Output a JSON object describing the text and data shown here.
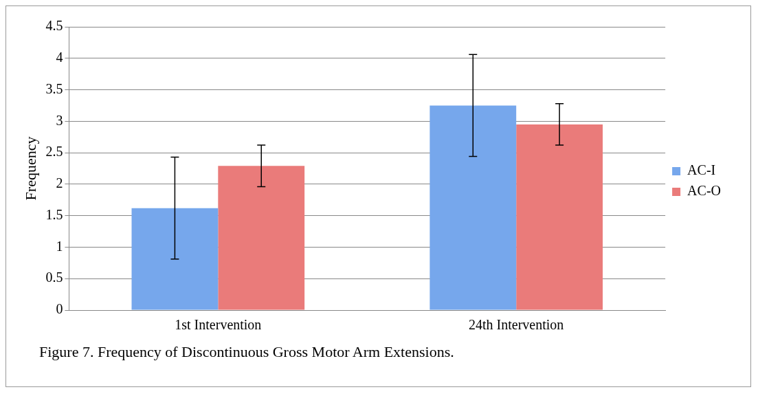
{
  "chart_data": {
    "type": "bar",
    "ylabel": "Frequency",
    "categories": [
      "1st Intervention",
      "24th Intervention"
    ],
    "series": [
      {
        "name": "AC-I",
        "color": "#76a7ec",
        "values": [
          1.62,
          3.25
        ],
        "errors": [
          0.81,
          0.81
        ]
      },
      {
        "name": "AC-O",
        "color": "#ea7b7a",
        "values": [
          2.29,
          2.95
        ],
        "errors": [
          0.33,
          0.33
        ]
      }
    ],
    "ylim": [
      0,
      4.5
    ],
    "yticks": [
      0,
      0.5,
      1,
      1.5,
      2,
      2.5,
      3,
      3.5,
      4,
      4.5
    ],
    "grid": "y",
    "legend": "right",
    "annotations": [
      "Figure 7. Frequency of Discontinuous Gross Motor Arm Extensions."
    ]
  }
}
